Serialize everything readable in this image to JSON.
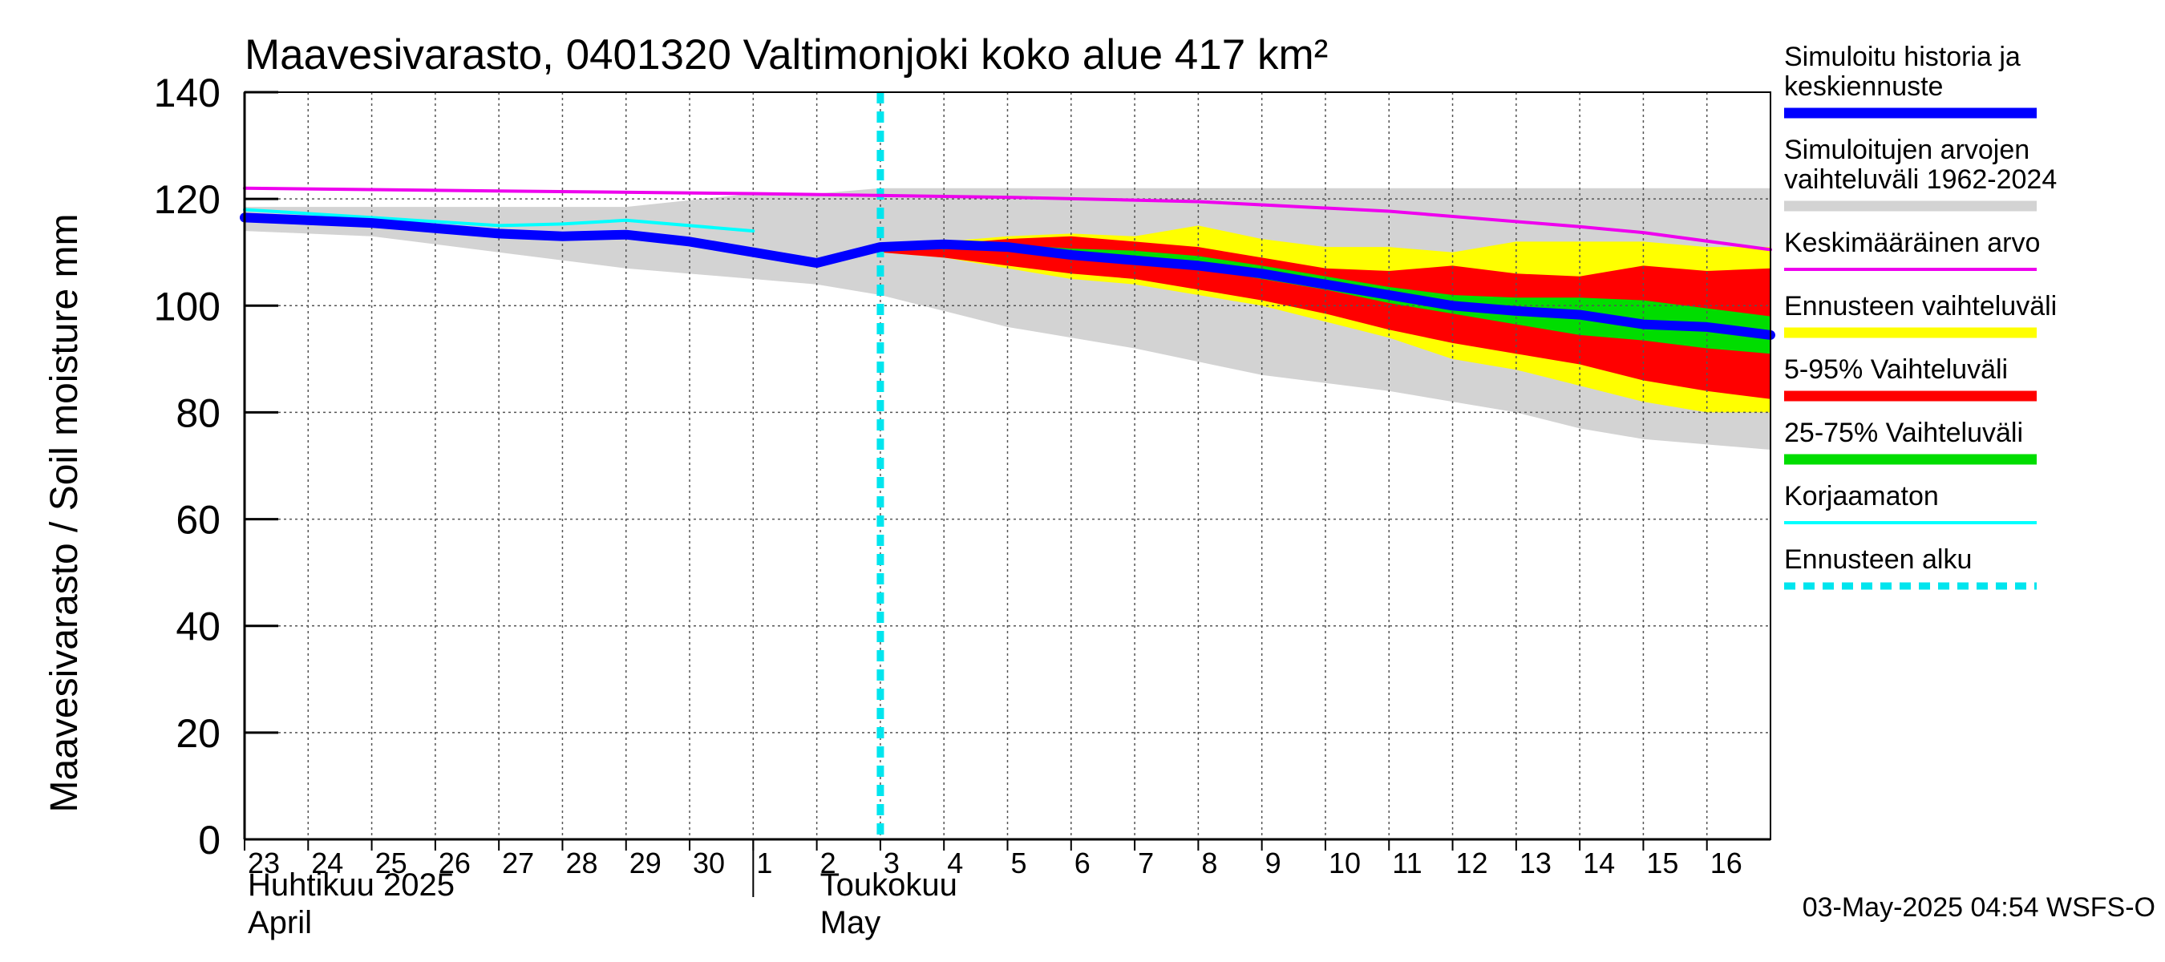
{
  "chart_data": {
    "type": "area",
    "title": "Maavesivarasto, 0401320 Valtimonjoki koko alue 417 km²",
    "ylabel": "Maavesivarasto / Soil moisture   mm",
    "ylim": [
      0,
      140
    ],
    "yticks": [
      0,
      20,
      40,
      60,
      80,
      100,
      120,
      140
    ],
    "grid": true,
    "x_domain": [
      "2025-04-23",
      "2025-05-17"
    ],
    "day_ticks": [
      {
        "date": "2025-04-23",
        "label": "23"
      },
      {
        "date": "2025-04-24",
        "label": "24"
      },
      {
        "date": "2025-04-25",
        "label": "25"
      },
      {
        "date": "2025-04-26",
        "label": "26"
      },
      {
        "date": "2025-04-27",
        "label": "27"
      },
      {
        "date": "2025-04-28",
        "label": "28"
      },
      {
        "date": "2025-04-29",
        "label": "29"
      },
      {
        "date": "2025-04-30",
        "label": "30"
      },
      {
        "date": "2025-05-01",
        "label": "1"
      },
      {
        "date": "2025-05-02",
        "label": "2"
      },
      {
        "date": "2025-05-03",
        "label": "3"
      },
      {
        "date": "2025-05-04",
        "label": "4"
      },
      {
        "date": "2025-05-05",
        "label": "5"
      },
      {
        "date": "2025-05-06",
        "label": "6"
      },
      {
        "date": "2025-05-07",
        "label": "7"
      },
      {
        "date": "2025-05-08",
        "label": "8"
      },
      {
        "date": "2025-05-09",
        "label": "9"
      },
      {
        "date": "2025-05-10",
        "label": "10"
      },
      {
        "date": "2025-05-11",
        "label": "11"
      },
      {
        "date": "2025-05-12",
        "label": "12"
      },
      {
        "date": "2025-05-13",
        "label": "13"
      },
      {
        "date": "2025-05-14",
        "label": "14"
      },
      {
        "date": "2025-05-15",
        "label": "15"
      },
      {
        "date": "2025-05-16",
        "label": "16"
      }
    ],
    "month_labels": [
      {
        "date": "2025-04-23",
        "line1": "Huhtikuu  2025",
        "line2": "April"
      },
      {
        "date": "2025-05-02",
        "line1": "Toukokuu",
        "line2": "May"
      }
    ],
    "month_separator": "2025-05-01",
    "forecast_start": "2025-05-03T00:00",
    "colors": {
      "history_range": "#d3d3d3",
      "forecast_range": "#ffff00",
      "p5_95": "#ff0000",
      "p25_75": "#00dd00",
      "median": "#0000ff",
      "mean": "#ee00ee",
      "uncorrected": "#00ffff",
      "forecast_start": "#00e5ee"
    },
    "series": [
      {
        "name": "Simuloitujen arvojen vaihteluväli 1962-2024",
        "kind": "band",
        "color_key": "history_range",
        "x": [
          "2025-04-23",
          "2025-04-25",
          "2025-04-27",
          "2025-04-29",
          "2025-05-01",
          "2025-05-02",
          "2025-05-03",
          "2025-05-04",
          "2025-05-05",
          "2025-05-07",
          "2025-05-09",
          "2025-05-11",
          "2025-05-13",
          "2025-05-14",
          "2025-05-15",
          "2025-05-16",
          "2025-05-17"
        ],
        "upper": [
          118.5,
          118.5,
          118.5,
          118.5,
          121,
          121,
          122,
          122,
          122,
          122,
          122,
          122,
          122,
          122,
          122,
          122,
          122
        ],
        "lower": [
          114,
          113,
          110,
          107,
          105,
          104,
          102,
          99,
          96,
          92,
          87,
          84,
          80,
          77,
          75,
          74,
          73
        ]
      },
      {
        "name": "Ennusteen vaihteluväli",
        "kind": "band",
        "color_key": "forecast_range",
        "x": [
          "2025-05-03",
          "2025-05-04",
          "2025-05-05",
          "2025-05-06",
          "2025-05-07",
          "2025-05-08",
          "2025-05-09",
          "2025-05-10",
          "2025-05-11",
          "2025-05-12",
          "2025-05-13",
          "2025-05-14",
          "2025-05-15",
          "2025-05-16",
          "2025-05-17"
        ],
        "upper": [
          111,
          112,
          113,
          113.5,
          113,
          115,
          112.5,
          111,
          111,
          110,
          112,
          112,
          112,
          111,
          111
        ],
        "lower": [
          110,
          109,
          107,
          105,
          104,
          102,
          100,
          97,
          94,
          90,
          88,
          85,
          82,
          80,
          80
        ]
      },
      {
        "name": "5-95% Vaihteluväli",
        "kind": "band",
        "color_key": "p5_95",
        "x": [
          "2025-05-03",
          "2025-05-04",
          "2025-05-05",
          "2025-05-06",
          "2025-05-07",
          "2025-05-08",
          "2025-05-09",
          "2025-05-10",
          "2025-05-11",
          "2025-05-12",
          "2025-05-13",
          "2025-05-14",
          "2025-05-15",
          "2025-05-16",
          "2025-05-17"
        ],
        "upper": [
          110.5,
          111.5,
          112.5,
          113,
          112,
          111,
          109,
          107,
          106.5,
          107.5,
          106,
          105.5,
          107.5,
          106.5,
          107
        ],
        "lower": [
          110,
          109,
          107.5,
          106,
          105,
          103,
          101,
          98.5,
          95.5,
          93,
          91,
          89,
          86,
          84,
          82.5
        ]
      },
      {
        "name": "25-75% Vaihteluväli",
        "kind": "band",
        "color_key": "p25_75",
        "x": [
          "2025-05-03",
          "2025-05-04",
          "2025-05-05",
          "2025-05-06",
          "2025-05-07",
          "2025-05-08",
          "2025-05-09",
          "2025-05-10",
          "2025-05-11",
          "2025-05-12",
          "2025-05-13",
          "2025-05-14",
          "2025-05-15",
          "2025-05-16",
          "2025-05-17"
        ],
        "upper": [
          110.5,
          111.3,
          111.5,
          110.7,
          110.3,
          109.3,
          107.5,
          105.5,
          103.5,
          102,
          101.5,
          101.5,
          101,
          99.5,
          98
        ],
        "lower": [
          110.3,
          110.6,
          110.5,
          109.5,
          108.5,
          107,
          105,
          103,
          100.5,
          98.5,
          96.5,
          94.5,
          93.5,
          92,
          91
        ]
      },
      {
        "name": "Keskimääräinen arvo",
        "kind": "line",
        "color_key": "mean",
        "width": 4,
        "x": [
          "2025-04-23",
          "2025-04-27",
          "2025-05-01",
          "2025-05-05",
          "2025-05-08",
          "2025-05-11",
          "2025-05-14",
          "2025-05-15",
          "2025-05-17"
        ],
        "y": [
          122,
          121.5,
          121,
          120.3,
          119.5,
          117.7,
          114.8,
          113.7,
          110.5
        ]
      },
      {
        "name": "Korjaamaton",
        "kind": "line",
        "color_key": "uncorrected",
        "width": 4,
        "x": [
          "2025-04-23",
          "2025-04-25",
          "2025-04-27",
          "2025-04-28",
          "2025-04-29",
          "2025-04-30",
          "2025-05-01"
        ],
        "y": [
          118,
          116.5,
          115,
          115.3,
          116,
          115,
          114
        ]
      },
      {
        "name": "Simuloitu historia ja keskiennuste",
        "kind": "line",
        "color_key": "median",
        "width": 12,
        "x": [
          "2025-04-23",
          "2025-04-25",
          "2025-04-27",
          "2025-04-28",
          "2025-04-29",
          "2025-04-30",
          "2025-05-01",
          "2025-05-02",
          "2025-05-03",
          "2025-05-04",
          "2025-05-05",
          "2025-05-06",
          "2025-05-07",
          "2025-05-08",
          "2025-05-09",
          "2025-05-10",
          "2025-05-11",
          "2025-05-12",
          "2025-05-13",
          "2025-05-14",
          "2025-05-15",
          "2025-05-16",
          "2025-05-17"
        ],
        "y": [
          116.5,
          115.5,
          113.5,
          113,
          113.3,
          112,
          110,
          108,
          111,
          111.5,
          111,
          109.5,
          108.5,
          107.5,
          106,
          104,
          102,
          100,
          99,
          98.3,
          96.5,
          96,
          94.5
        ]
      }
    ],
    "legend": [
      {
        "label": "Simuloitu historia ja keskiennuste",
        "lines": [
          "Simuloitu historia ja",
          "keskiennuste"
        ],
        "color_key": "median",
        "style": "thick"
      },
      {
        "label": "Simuloitujen arvojen vaihteluväli 1962-2024",
        "lines": [
          "Simuloitujen arvojen",
          "vaihteluväli 1962-2024"
        ],
        "color_key": "history_range",
        "style": "thick"
      },
      {
        "label": "Keskimääräinen arvo",
        "lines": [
          "Keskimääräinen arvo"
        ],
        "color_key": "mean",
        "style": "thin"
      },
      {
        "label": "Ennusteen vaihteluväli",
        "lines": [
          "Ennusteen vaihteluväli"
        ],
        "color_key": "forecast_range",
        "style": "thick"
      },
      {
        "label": "5-95% Vaihteluväli",
        "lines": [
          "5-95% Vaihteluväli"
        ],
        "color_key": "p5_95",
        "style": "thick"
      },
      {
        "label": "25-75% Vaihteluväli",
        "lines": [
          "25-75% Vaihteluväli"
        ],
        "color_key": "p25_75",
        "style": "thick"
      },
      {
        "label": "Korjaamaton",
        "lines": [
          "Korjaamaton"
        ],
        "color_key": "uncorrected",
        "style": "thin"
      },
      {
        "label": "Ennusteen alku",
        "lines": [
          "Ennusteen alku"
        ],
        "color_key": "forecast_start",
        "style": "dashed"
      }
    ],
    "timestamp": "03-May-2025 04:54 WSFS-O"
  }
}
